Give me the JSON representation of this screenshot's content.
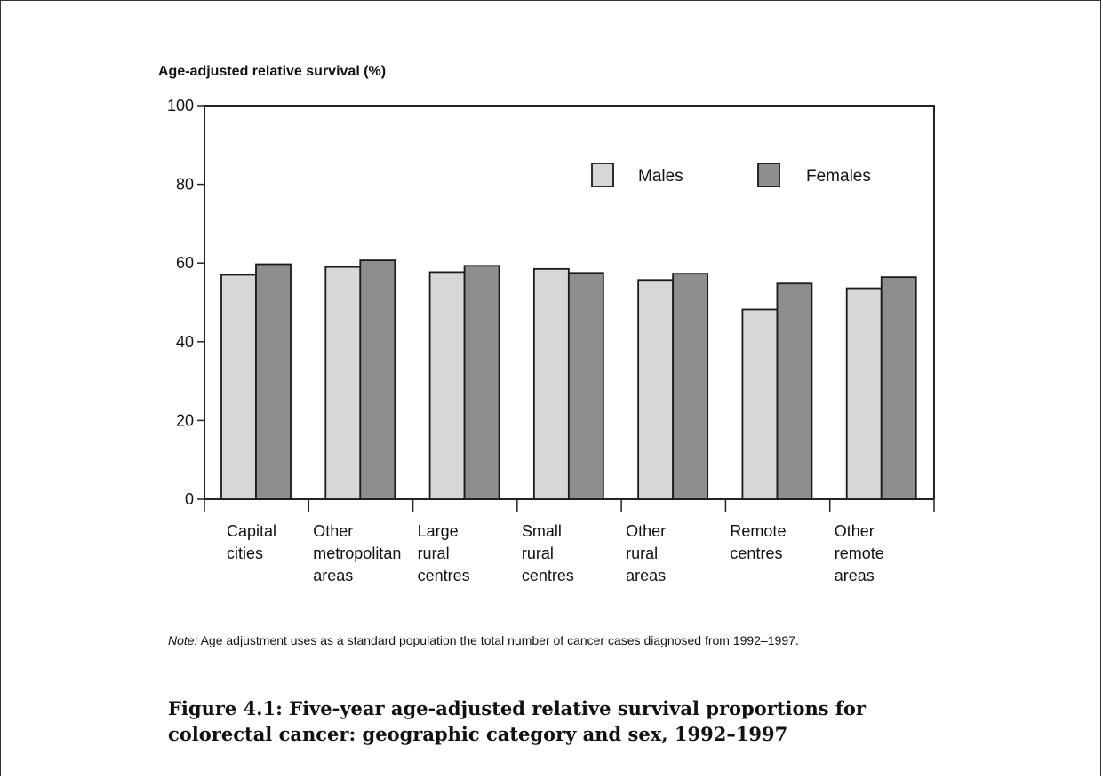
{
  "chart_data": {
    "type": "bar",
    "title": "",
    "ylabel": "Age-adjusted relative survival (%)",
    "xlabel": "",
    "ylim": [
      0,
      100
    ],
    "yticks": [
      0,
      20,
      40,
      60,
      80,
      100
    ],
    "grid": false,
    "legend_position": "top-right",
    "categories": [
      [
        "Capital",
        "cities"
      ],
      [
        "Other",
        "metropolitan",
        "areas"
      ],
      [
        "Large",
        "rural",
        "centres"
      ],
      [
        "Small",
        "rural",
        "centres"
      ],
      [
        "Other",
        "rural",
        "areas"
      ],
      [
        "Remote",
        "centres"
      ],
      [
        "Other",
        "remote",
        "areas"
      ]
    ],
    "series": [
      {
        "name": "Males",
        "color": "#d7d7d7",
        "values": [
          57,
          59,
          57.7,
          58.5,
          55.7,
          48.2,
          53.6
        ]
      },
      {
        "name": "Females",
        "color": "#8e8e8e",
        "values": [
          59.7,
          60.7,
          59.3,
          57.5,
          57.3,
          54.8,
          56.4
        ]
      }
    ]
  },
  "note": {
    "label": "Note:",
    "text": " Age adjustment uses as a standard population the total number of cancer cases diagnosed from 1992–1997."
  },
  "caption": "Figure 4.1: Five-year age-adjusted relative survival proportions for colorectal cancer: geographic category and sex, 1992–1997"
}
